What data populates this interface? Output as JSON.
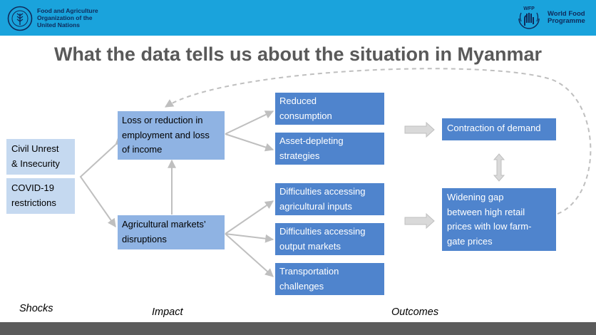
{
  "header": {
    "fao_logo_text": "Food and Agriculture\nOrganization of the\nUnited Nations",
    "fao_logo_lettering": "FAO FIAT PANIS",
    "wfp_badge": "WFP",
    "wfp_logo_text": "World Food\nProgramme"
  },
  "title": "What the data tells us about the situation in Myanmar",
  "shocks": [
    "Civil Unrest\n& Insecurity",
    "COVID-19\nrestrictions"
  ],
  "impacts": [
    "Loss or reduction in\nemployment and loss\nof income",
    "Agricultural markets’\ndisruptions"
  ],
  "effects": [
    "Reduced\nconsumption",
    "Asset-depleting\nstrategies",
    "Difficulties accessing\nagricultural inputs",
    "Difficulties accessing\noutput markets",
    "Transportation\nchallenges"
  ],
  "outcomes": [
    "Contraction of demand",
    "Widening gap\nbetween high retail\nprices with low farm-\ngate prices"
  ],
  "column_labels": {
    "shocks": "Shocks",
    "impact": "Impact",
    "outcomes": "Outcomes"
  },
  "colors": {
    "header_bg": "#1aa3dc",
    "light_box": "#c5d9f0",
    "mid_box": "#8fb3e3",
    "dark_box": "#4f84cd",
    "arrow": "#bfbfbf",
    "title_text": "#595959"
  }
}
